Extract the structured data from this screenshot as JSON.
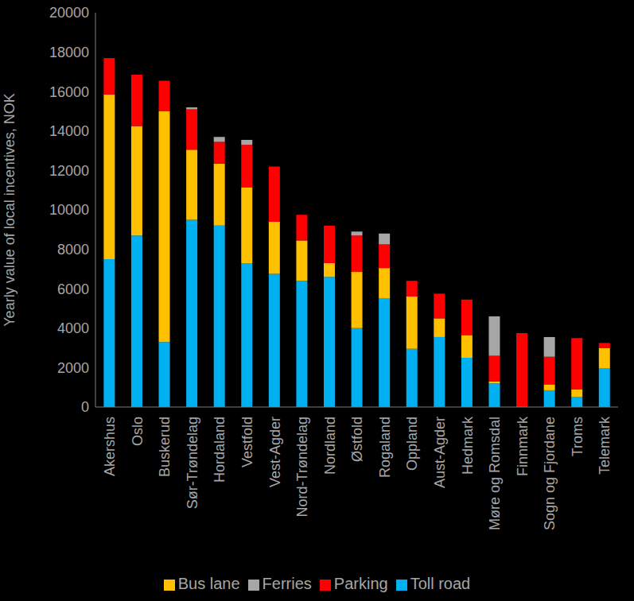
{
  "chart_data": {
    "type": "bar",
    "y_label": "Yearly value of local incentives, NOK",
    "categories": [
      "Akershus",
      "Oslo",
      "Buskerud",
      "Sør-Trøndelag",
      "Hordaland",
      "Vestfold",
      "Vest-Agder",
      "Nord-Trøndelag",
      "Nordland",
      "Østfold",
      "Rogaland",
      "Oppland",
      "Aust-Agder",
      "Hedmark",
      "Møre og Romsdal",
      "Finnmark",
      "Sogn og Fjordane",
      "Troms",
      "Telemark"
    ],
    "series": [
      {
        "name": "Toll road",
        "color": "#00b0f0",
        "values": [
          7500,
          8700,
          3300,
          9500,
          9200,
          7300,
          6750,
          6400,
          6600,
          4000,
          5500,
          2950,
          3550,
          2500,
          1200,
          0,
          850,
          500,
          1950
        ]
      },
      {
        "name": "Bus lane",
        "color": "#ffc000",
        "values": [
          8350,
          5550,
          11700,
          3550,
          3150,
          3850,
          2650,
          2050,
          700,
          2850,
          1550,
          2650,
          950,
          1150,
          100,
          0,
          300,
          400,
          1050
        ]
      },
      {
        "name": "Parking",
        "color": "#ff0000",
        "values": [
          1850,
          2600,
          1550,
          2050,
          1100,
          2150,
          2800,
          1300,
          1900,
          1850,
          1200,
          800,
          1250,
          1800,
          1300,
          3750,
          1400,
          2600,
          250
        ]
      },
      {
        "name": "Ferries",
        "color": "#a6a6a6",
        "values": [
          0,
          0,
          0,
          100,
          250,
          250,
          0,
          0,
          0,
          200,
          550,
          0,
          0,
          0,
          2000,
          0,
          1000,
          0,
          0
        ]
      }
    ],
    "ylim": [
      0,
      20000
    ],
    "yticks": [
      0,
      2000,
      4000,
      6000,
      8000,
      10000,
      12000,
      14000,
      16000,
      18000,
      20000
    ],
    "stacked": true,
    "grid": false,
    "legend": "bottom"
  }
}
